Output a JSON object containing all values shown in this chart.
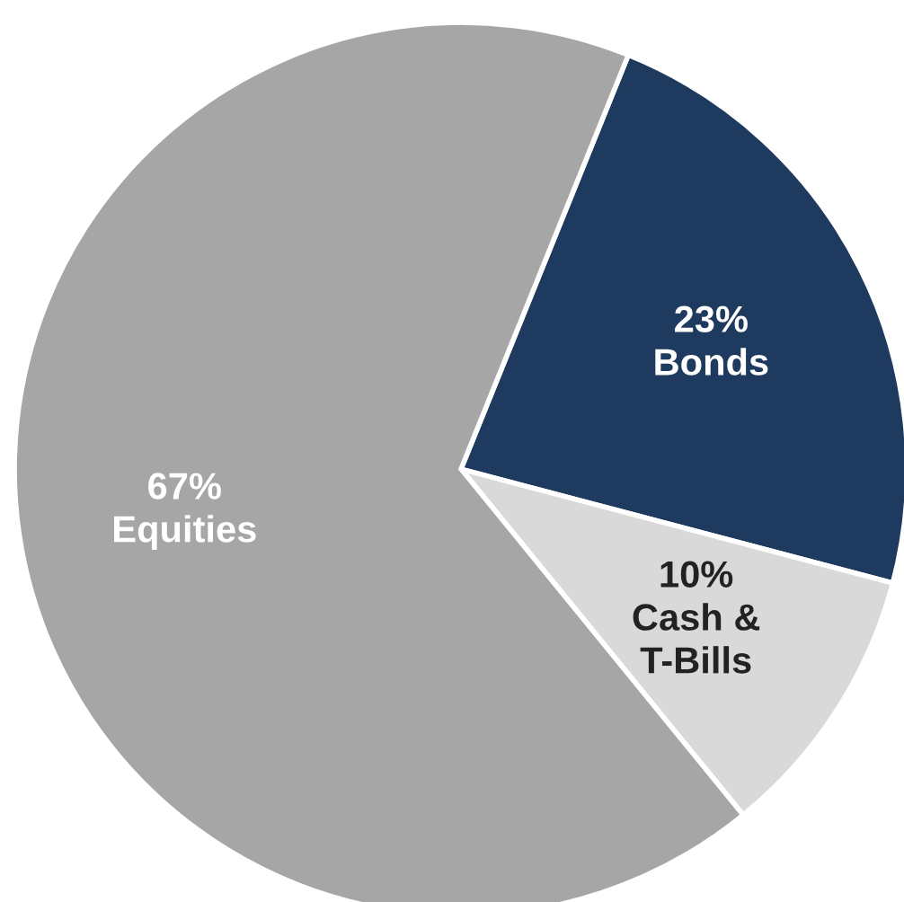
{
  "chart_data": {
    "type": "pie",
    "categories": [
      "Bonds",
      "Cash &\nT-Bills",
      "Equities"
    ],
    "values": [
      23,
      10,
      67
    ],
    "colors": [
      "#1f3a5f",
      "#d9d9d9",
      "#a6a6a6"
    ],
    "value_labels": [
      "23%",
      "10%",
      "67%"
    ]
  }
}
